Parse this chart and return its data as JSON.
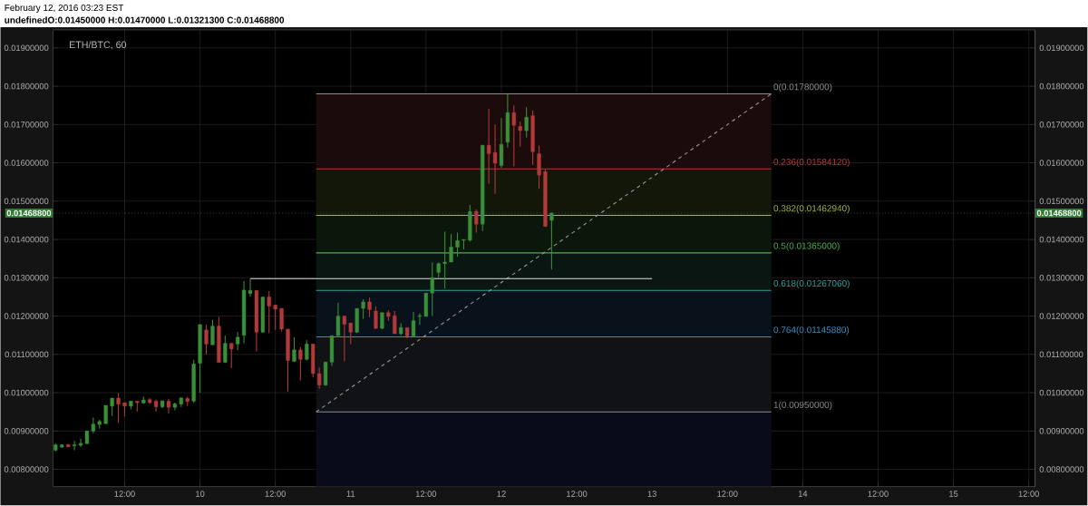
{
  "chart_data": {
    "type": "candlestick",
    "title": "ETH/BTC, 60",
    "annotations": [
      "February 12, 2016 03:23 EST",
      "undefinedO:0.01450000 H:0.01470000 L:0.01321300 C:0.01468800"
    ],
    "xlim": [
      "2016-02-09T00:35",
      "2016-02-15T13:00"
    ],
    "xticks": [
      {
        "value": "2016-02-09T12:00",
        "label": "12:00"
      },
      {
        "value": "2016-02-10",
        "label": "10"
      },
      {
        "value": "2016-02-10T12:00",
        "label": "12:00"
      },
      {
        "value": "2016-02-11",
        "label": "11"
      },
      {
        "value": "2016-02-11T12:00",
        "label": "12:00"
      },
      {
        "value": "2016-02-12",
        "label": "12"
      },
      {
        "value": "2016-02-12T12:00",
        "label": "12:00"
      },
      {
        "value": "2016-02-13",
        "label": "13"
      },
      {
        "value": "2016-02-13T12:00",
        "label": "12:00"
      },
      {
        "value": "2016-02-14",
        "label": "14"
      },
      {
        "value": "2016-02-14T12:00",
        "label": "12:00"
      },
      {
        "value": "2016-02-15",
        "label": "15"
      },
      {
        "value": "2016-02-15T12:00",
        "label": "12:00"
      }
    ],
    "ylim": [
      0.00755,
      0.01947
    ],
    "yticks": [
      {
        "value": 0.008,
        "label": "0.00800000"
      },
      {
        "value": 0.009,
        "label": "0.00900000"
      },
      {
        "value": 0.01,
        "label": "0.01000000"
      },
      {
        "value": 0.011,
        "label": "0.01100000"
      },
      {
        "value": 0.012,
        "label": "0.01200000"
      },
      {
        "value": 0.013,
        "label": "0.01300000"
      },
      {
        "value": 0.014,
        "label": "0.01400000"
      },
      {
        "value": 0.015,
        "label": "0.01500000"
      },
      {
        "value": 0.016,
        "label": "0.01600000"
      },
      {
        "value": 0.017,
        "label": "0.01700000"
      },
      {
        "value": 0.018,
        "label": "0.01800000"
      },
      {
        "value": 0.019,
        "label": "0.01900000"
      }
    ],
    "y2lim": [
      0.00755,
      0.01947
    ],
    "y2ticks": [
      {
        "value": 0.008,
        "label": "0.00800000"
      },
      {
        "value": 0.009,
        "label": "0.00900000"
      },
      {
        "value": 0.01,
        "label": "0.01000000"
      },
      {
        "value": 0.011,
        "label": "0.01100000"
      },
      {
        "value": 0.012,
        "label": "0.01200000"
      },
      {
        "value": 0.013,
        "label": "0.01300000"
      },
      {
        "value": 0.014,
        "label": "0.01400000"
      },
      {
        "value": 0.015,
        "label": "0.01500000"
      },
      {
        "value": 0.016,
        "label": "0.01600000"
      },
      {
        "value": 0.017,
        "label": "0.01700000"
      },
      {
        "value": 0.018,
        "label": "0.01800000"
      },
      {
        "value": 0.019,
        "label": "0.01900000"
      }
    ],
    "grid": true,
    "x": [
      "2016-02-09T01:00",
      "2016-02-09T02:00",
      "2016-02-09T03:00",
      "2016-02-09T04:00",
      "2016-02-09T05:00",
      "2016-02-09T06:00",
      "2016-02-09T07:00",
      "2016-02-09T08:00",
      "2016-02-09T09:00",
      "2016-02-09T10:00",
      "2016-02-09T11:00",
      "2016-02-09T12:00",
      "2016-02-09T13:00",
      "2016-02-09T14:00",
      "2016-02-09T15:00",
      "2016-02-09T16:00",
      "2016-02-09T17:00",
      "2016-02-09T18:00",
      "2016-02-09T19:00",
      "2016-02-09T20:00",
      "2016-02-09T21:00",
      "2016-02-09T22:00",
      "2016-02-09T23:00",
      "2016-02-10T00:00",
      "2016-02-10T01:00",
      "2016-02-10T02:00",
      "2016-02-10T03:00",
      "2016-02-10T04:00",
      "2016-02-10T05:00",
      "2016-02-10T06:00",
      "2016-02-10T07:00",
      "2016-02-10T08:00",
      "2016-02-10T09:00",
      "2016-02-10T10:00",
      "2016-02-10T11:00",
      "2016-02-10T12:00",
      "2016-02-10T13:00",
      "2016-02-10T14:00",
      "2016-02-10T15:00",
      "2016-02-10T16:00",
      "2016-02-10T17:00",
      "2016-02-10T18:00",
      "2016-02-10T19:00",
      "2016-02-10T20:00",
      "2016-02-10T21:00",
      "2016-02-10T22:00",
      "2016-02-10T23:00",
      "2016-02-11T00:00",
      "2016-02-11T01:00",
      "2016-02-11T02:00",
      "2016-02-11T03:00",
      "2016-02-11T04:00",
      "2016-02-11T05:00",
      "2016-02-11T06:00",
      "2016-02-11T07:00",
      "2016-02-11T08:00",
      "2016-02-11T09:00",
      "2016-02-11T10:00",
      "2016-02-11T11:00",
      "2016-02-11T12:00",
      "2016-02-11T13:00",
      "2016-02-11T14:00",
      "2016-02-11T15:00",
      "2016-02-11T16:00",
      "2016-02-11T17:00",
      "2016-02-11T18:00",
      "2016-02-11T19:00",
      "2016-02-11T20:00",
      "2016-02-11T21:00",
      "2016-02-11T22:00",
      "2016-02-11T23:00",
      "2016-02-12T00:00",
      "2016-02-12T01:00",
      "2016-02-12T02:00",
      "2016-02-12T03:00",
      "2016-02-12T04:00",
      "2016-02-12T05:00",
      "2016-02-12T06:00",
      "2016-02-12T07:00",
      "2016-02-12T08:00"
    ],
    "ohlc": [
      [
        0.0085,
        0.00868,
        0.00847,
        0.00864
      ],
      [
        0.00858,
        0.00866,
        0.00856,
        0.00864
      ],
      [
        0.00865,
        0.00866,
        0.00857,
        0.00859
      ],
      [
        0.00861,
        0.00875,
        0.0085,
        0.00864
      ],
      [
        0.00863,
        0.0088,
        0.00858,
        0.00868
      ],
      [
        0.00867,
        0.009,
        0.00866,
        0.009
      ],
      [
        0.009,
        0.00935,
        0.00894,
        0.00918
      ],
      [
        0.00917,
        0.00929,
        0.00906,
        0.00925
      ],
      [
        0.00919,
        0.00967,
        0.00919,
        0.00967
      ],
      [
        0.00965,
        0.00986,
        0.00939,
        0.00986
      ],
      [
        0.00986,
        0.00999,
        0.00921,
        0.0097
      ],
      [
        0.00974,
        0.00974,
        0.00938,
        0.00965
      ],
      [
        0.00965,
        0.00978,
        0.00957,
        0.00978
      ],
      [
        0.00978,
        0.00978,
        0.00951,
        0.00974
      ],
      [
        0.00973,
        0.0099,
        0.00971,
        0.00981
      ],
      [
        0.00982,
        0.00986,
        0.00971,
        0.00974
      ],
      [
        0.00978,
        0.00982,
        0.00951,
        0.00963
      ],
      [
        0.00963,
        0.00979,
        0.0096,
        0.00979
      ],
      [
        0.00978,
        0.00984,
        0.00946,
        0.00962
      ],
      [
        0.00962,
        0.00974,
        0.00954,
        0.00971
      ],
      [
        0.0097,
        0.00989,
        0.00963,
        0.00986
      ],
      [
        0.00985,
        0.00989,
        0.00965,
        0.00977
      ],
      [
        0.00978,
        0.01086,
        0.00974,
        0.01075
      ],
      [
        0.01077,
        0.01178,
        0.01,
        0.01178
      ],
      [
        0.01164,
        0.01178,
        0.011,
        0.01127
      ],
      [
        0.01125,
        0.0119,
        0.01125,
        0.01174
      ],
      [
        0.01174,
        0.01198,
        0.01079,
        0.01079
      ],
      [
        0.01079,
        0.01149,
        0.01079,
        0.01129
      ],
      [
        0.01129,
        0.01129,
        0.01064,
        0.01114
      ],
      [
        0.01127,
        0.01159,
        0.01111,
        0.01145
      ],
      [
        0.0115,
        0.01292,
        0.01129,
        0.01268
      ],
      [
        0.01259,
        0.01298,
        0.01251,
        0.01267
      ],
      [
        0.01267,
        0.01267,
        0.01108,
        0.01158
      ],
      [
        0.01158,
        0.0125,
        0.01157,
        0.0125
      ],
      [
        0.0125,
        0.01265,
        0.01155,
        0.01226
      ],
      [
        0.01229,
        0.01229,
        0.01164,
        0.01218
      ],
      [
        0.0122,
        0.01221,
        0.0116,
        0.01166
      ],
      [
        0.01166,
        0.01166,
        0.01003,
        0.01084
      ],
      [
        0.01082,
        0.01145,
        0.0108,
        0.01112
      ],
      [
        0.01112,
        0.01119,
        0.01032,
        0.01087
      ],
      [
        0.01087,
        0.01137,
        0.01084,
        0.01127
      ],
      [
        0.01127,
        0.01127,
        0.0104,
        0.0105
      ],
      [
        0.0105,
        0.01066,
        0.0101,
        0.0102
      ],
      [
        0.0102,
        0.0108,
        0.01018,
        0.0108
      ],
      [
        0.0108,
        0.01149,
        0.0107,
        0.01149
      ],
      [
        0.01149,
        0.01235,
        0.01148,
        0.012
      ],
      [
        0.012,
        0.012,
        0.01082,
        0.01179
      ],
      [
        0.01182,
        0.01182,
        0.01127,
        0.01158
      ],
      [
        0.01158,
        0.0122,
        0.01156,
        0.0122
      ],
      [
        0.0122,
        0.01244,
        0.01193,
        0.01237
      ],
      [
        0.01237,
        0.01248,
        0.01197,
        0.01217
      ],
      [
        0.01213,
        0.01225,
        0.01166,
        0.01168
      ],
      [
        0.01168,
        0.01209,
        0.01166,
        0.01209
      ],
      [
        0.01209,
        0.01215,
        0.01188,
        0.01199
      ],
      [
        0.01201,
        0.01213,
        0.01154,
        0.01154
      ],
      [
        0.01154,
        0.01181,
        0.0115,
        0.0117
      ],
      [
        0.0117,
        0.0117,
        0.01142,
        0.01148
      ],
      [
        0.01148,
        0.01211,
        0.01148,
        0.01188
      ],
      [
        0.01199,
        0.01207,
        0.01177,
        0.01201
      ],
      [
        0.01199,
        0.0126,
        0.01199,
        0.0126
      ],
      [
        0.0126,
        0.0134,
        0.012,
        0.013
      ],
      [
        0.01314,
        0.0134,
        0.013,
        0.01337
      ],
      [
        0.01337,
        0.0142,
        0.01272,
        0.01341
      ],
      [
        0.01341,
        0.01414,
        0.01341,
        0.0138
      ],
      [
        0.0138,
        0.01418,
        0.01355,
        0.01397
      ],
      [
        0.01398,
        0.014,
        0.01374,
        0.014
      ],
      [
        0.01398,
        0.0149,
        0.01394,
        0.01473
      ],
      [
        0.01473,
        0.01478,
        0.01418,
        0.0144
      ],
      [
        0.0144,
        0.01646,
        0.01422,
        0.01646
      ],
      [
        0.01646,
        0.01741,
        0.01545,
        0.01624
      ],
      [
        0.01627,
        0.017,
        0.01519,
        0.01599
      ],
      [
        0.01593,
        0.01717,
        0.01587,
        0.01648
      ],
      [
        0.01654,
        0.01779,
        0.0164,
        0.01731
      ],
      [
        0.01731,
        0.0175,
        0.01591,
        0.01698
      ],
      [
        0.01695,
        0.01708,
        0.01642,
        0.01684
      ],
      [
        0.01684,
        0.01745,
        0.01666,
        0.01719
      ],
      [
        0.01723,
        0.01737,
        0.01595,
        0.01629
      ],
      [
        0.01624,
        0.01645,
        0.01532,
        0.01568
      ],
      [
        0.01577,
        0.01583,
        0.01434,
        0.01434
      ],
      [
        0.0145,
        0.0147,
        0.013213,
        0.014688
      ]
    ],
    "colors": [
      "#3b8f3b",
      "#3b8f3b",
      "#b33a3a",
      "#3b8f3b",
      "#3b8f3b",
      "#3b8f3b",
      "#3b8f3b",
      "#3b8f3b",
      "#3b8f3b",
      "#3b8f3b",
      "#b33a3a",
      "#b33a3a",
      "#3b8f3b",
      "#b33a3a",
      "#3b8f3b",
      "#b33a3a",
      "#b33a3a",
      "#3b8f3b",
      "#b33a3a",
      "#3b8f3b",
      "#3b8f3b",
      "#b33a3a",
      "#3b8f3b",
      "#3b8f3b",
      "#b33a3a",
      "#3b8f3b",
      "#b33a3a",
      "#3b8f3b",
      "#b33a3a",
      "#3b8f3b",
      "#3b8f3b",
      "#3b8f3b",
      "#b33a3a",
      "#3b8f3b",
      "#b33a3a",
      "#b33a3a",
      "#b33a3a",
      "#b33a3a",
      "#3b8f3b",
      "#b33a3a",
      "#3b8f3b",
      "#b33a3a",
      "#b33a3a",
      "#3b8f3b",
      "#3b8f3b",
      "#3b8f3b",
      "#b33a3a",
      "#b33a3a",
      "#3b8f3b",
      "#3b8f3b",
      "#b33a3a",
      "#b33a3a",
      "#3b8f3b",
      "#b33a3a",
      "#b33a3a",
      "#3b8f3b",
      "#b33a3a",
      "#3b8f3b",
      "#3b8f3b",
      "#3b8f3b",
      "#3b8f3b",
      "#3b8f3b",
      "#3b8f3b",
      "#3b8f3b",
      "#3b8f3b",
      "#3b8f3b",
      "#3b8f3b",
      "#b33a3a",
      "#3b8f3b",
      "#b33a3a",
      "#b33a3a",
      "#3b8f3b",
      "#3b8f3b",
      "#b33a3a",
      "#b33a3a",
      "#3b8f3b",
      "#b33a3a",
      "#b33a3a",
      "#b33a3a",
      "#3b8f3b"
    ],
    "series": [
      {
        "type": "line",
        "name": "0(0.01780000)",
        "color": "#8c8c8c",
        "x": [
          "2016-02-10T18:30",
          "2016-02-13T19:00"
        ],
        "values": [
          0.0178,
          0.0178
        ]
      },
      {
        "type": "line",
        "name": "0.236(0.01584120)",
        "color": "#b23a3a",
        "x": [
          "2016-02-10T18:30",
          "2016-02-13T19:00"
        ],
        "values": [
          0.0158412,
          0.0158412
        ]
      },
      {
        "type": "line",
        "name": "0.382(0.01462940)",
        "color": "#a6b83a",
        "x": [
          "2016-02-10T18:30",
          "2016-02-13T19:00"
        ],
        "values": [
          0.0146294,
          0.0146294
        ]
      },
      {
        "type": "line",
        "name": "0.5(0.01365000)",
        "color": "#4caf50",
        "x": [
          "2016-02-10T18:30",
          "2016-02-13T19:00"
        ],
        "values": [
          0.01365,
          0.01365
        ]
      },
      {
        "type": "line",
        "name": "0.618(0.01267060)",
        "color": "#26a69a",
        "x": [
          "2016-02-10T18:30",
          "2016-02-13T19:00"
        ],
        "values": [
          0.0126706,
          0.0126706
        ]
      },
      {
        "type": "line",
        "name": "0.764(0.01145880)",
        "color": "#3a8fc0",
        "x": [
          "2016-02-10T18:30",
          "2016-02-13T19:00"
        ],
        "values": [
          0.0114588,
          0.0114588
        ]
      },
      {
        "type": "line",
        "name": "1(0.00950000)",
        "color": "#8c8c8c",
        "x": [
          "2016-02-10T18:30",
          "2016-02-13T19:00"
        ],
        "values": [
          0.0095,
          0.0095
        ]
      },
      {
        "type": "line",
        "color": "#9a9a9a",
        "line_style": "dashed",
        "x": [
          "2016-02-10T18:30",
          "2016-02-13T19:00"
        ],
        "values": [
          0.0095,
          0.0178
        ]
      },
      {
        "type": "line",
        "color": "#e0e0e0",
        "x": [
          "2016-02-10T08:00",
          "2016-02-13T00:00"
        ],
        "values": [
          0.01298,
          0.01298
        ]
      }
    ],
    "bands": [
      {
        "axis": "y",
        "from": 0.0158412,
        "to": 0.0178,
        "color": "#1c0b0b"
      },
      {
        "axis": "y",
        "from": 0.0146294,
        "to": 0.0158412,
        "color": "#13170a"
      },
      {
        "axis": "y",
        "from": 0.01365,
        "to": 0.0146294,
        "color": "#0c170b"
      },
      {
        "axis": "y",
        "from": 0.0126706,
        "to": 0.01365,
        "color": "#0a1611"
      },
      {
        "axis": "y",
        "from": 0.0114588,
        "to": 0.0126706,
        "color": "#09121a"
      },
      {
        "axis": "y",
        "from": 0.0095,
        "to": 0.0114588,
        "color": "#111215"
      },
      {
        "axis": "y",
        "from": 0.00755,
        "to": 0.0095,
        "color": "#0a0b18"
      }
    ],
    "ref_lines": [
      {
        "axis": "y",
        "value": 0.014688,
        "label": "0.01468800",
        "color": "#2e7d32",
        "line_style": "dotted"
      }
    ]
  }
}
